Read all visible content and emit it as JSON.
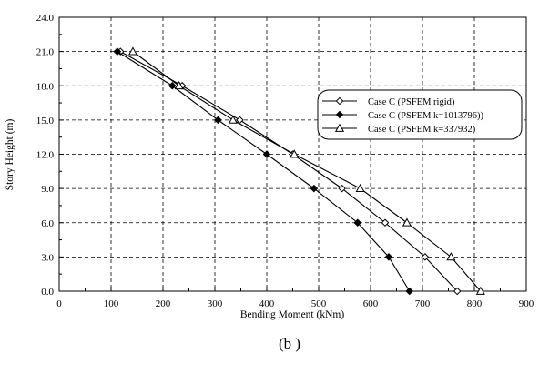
{
  "caption": "(b )",
  "chart_data": {
    "type": "line",
    "xlabel": "Bending Moment (kNm)",
    "ylabel": "Story Height (m)",
    "xlim": [
      0,
      900
    ],
    "ylim": [
      0,
      24
    ],
    "xticks": [
      "0",
      "100",
      "200",
      "300",
      "400",
      "500",
      "600",
      "700",
      "800",
      "900"
    ],
    "yticks": [
      "0.0",
      "3.0",
      "6.0",
      "9.0",
      "12.0",
      "15.0",
      "18.0",
      "21.0",
      "24.0"
    ],
    "grid": true,
    "legend_position": "right",
    "series": [
      {
        "name": "Case C (PSFEM rigid)",
        "marker": "diamond-open",
        "points": [
          [
            767,
            0
          ],
          [
            705,
            3
          ],
          [
            628,
            6
          ],
          [
            545,
            9
          ],
          [
            450,
            12
          ],
          [
            348,
            15
          ],
          [
            237,
            18
          ],
          [
            118,
            21
          ]
        ]
      },
      {
        "name": "Case C (PSFEM k=1013796))",
        "marker": "diamond-filled",
        "points": [
          [
            675,
            0
          ],
          [
            635,
            3
          ],
          [
            575,
            6
          ],
          [
            491,
            9
          ],
          [
            400,
            12
          ],
          [
            306,
            15
          ],
          [
            218,
            18
          ],
          [
            112,
            21
          ]
        ]
      },
      {
        "name": "Case C (PSFEM k=337932)",
        "marker": "triangle-open",
        "points": [
          [
            812,
            0
          ],
          [
            755,
            3
          ],
          [
            670,
            6
          ],
          [
            580,
            9
          ],
          [
            453,
            12
          ],
          [
            335,
            15
          ],
          [
            231,
            18
          ],
          [
            142,
            21
          ]
        ]
      }
    ]
  }
}
